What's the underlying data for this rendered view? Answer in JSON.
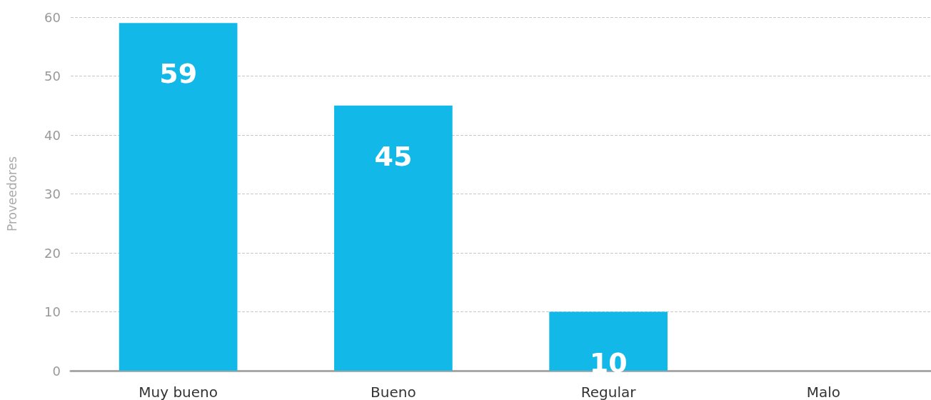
{
  "chart_data": {
    "type": "bar",
    "ylabel": "Proveedores",
    "categories": [
      "Muy bueno",
      "Bueno",
      "Regular",
      "Malo"
    ],
    "values": [
      59,
      45,
      10,
      0
    ],
    "value_labels": [
      "59",
      "45",
      "10",
      null
    ],
    "color": "#12b9e8",
    "ylim": [
      0,
      60
    ],
    "yticks": [
      0,
      10,
      20,
      30,
      40,
      50,
      60
    ],
    "grid": "y"
  }
}
